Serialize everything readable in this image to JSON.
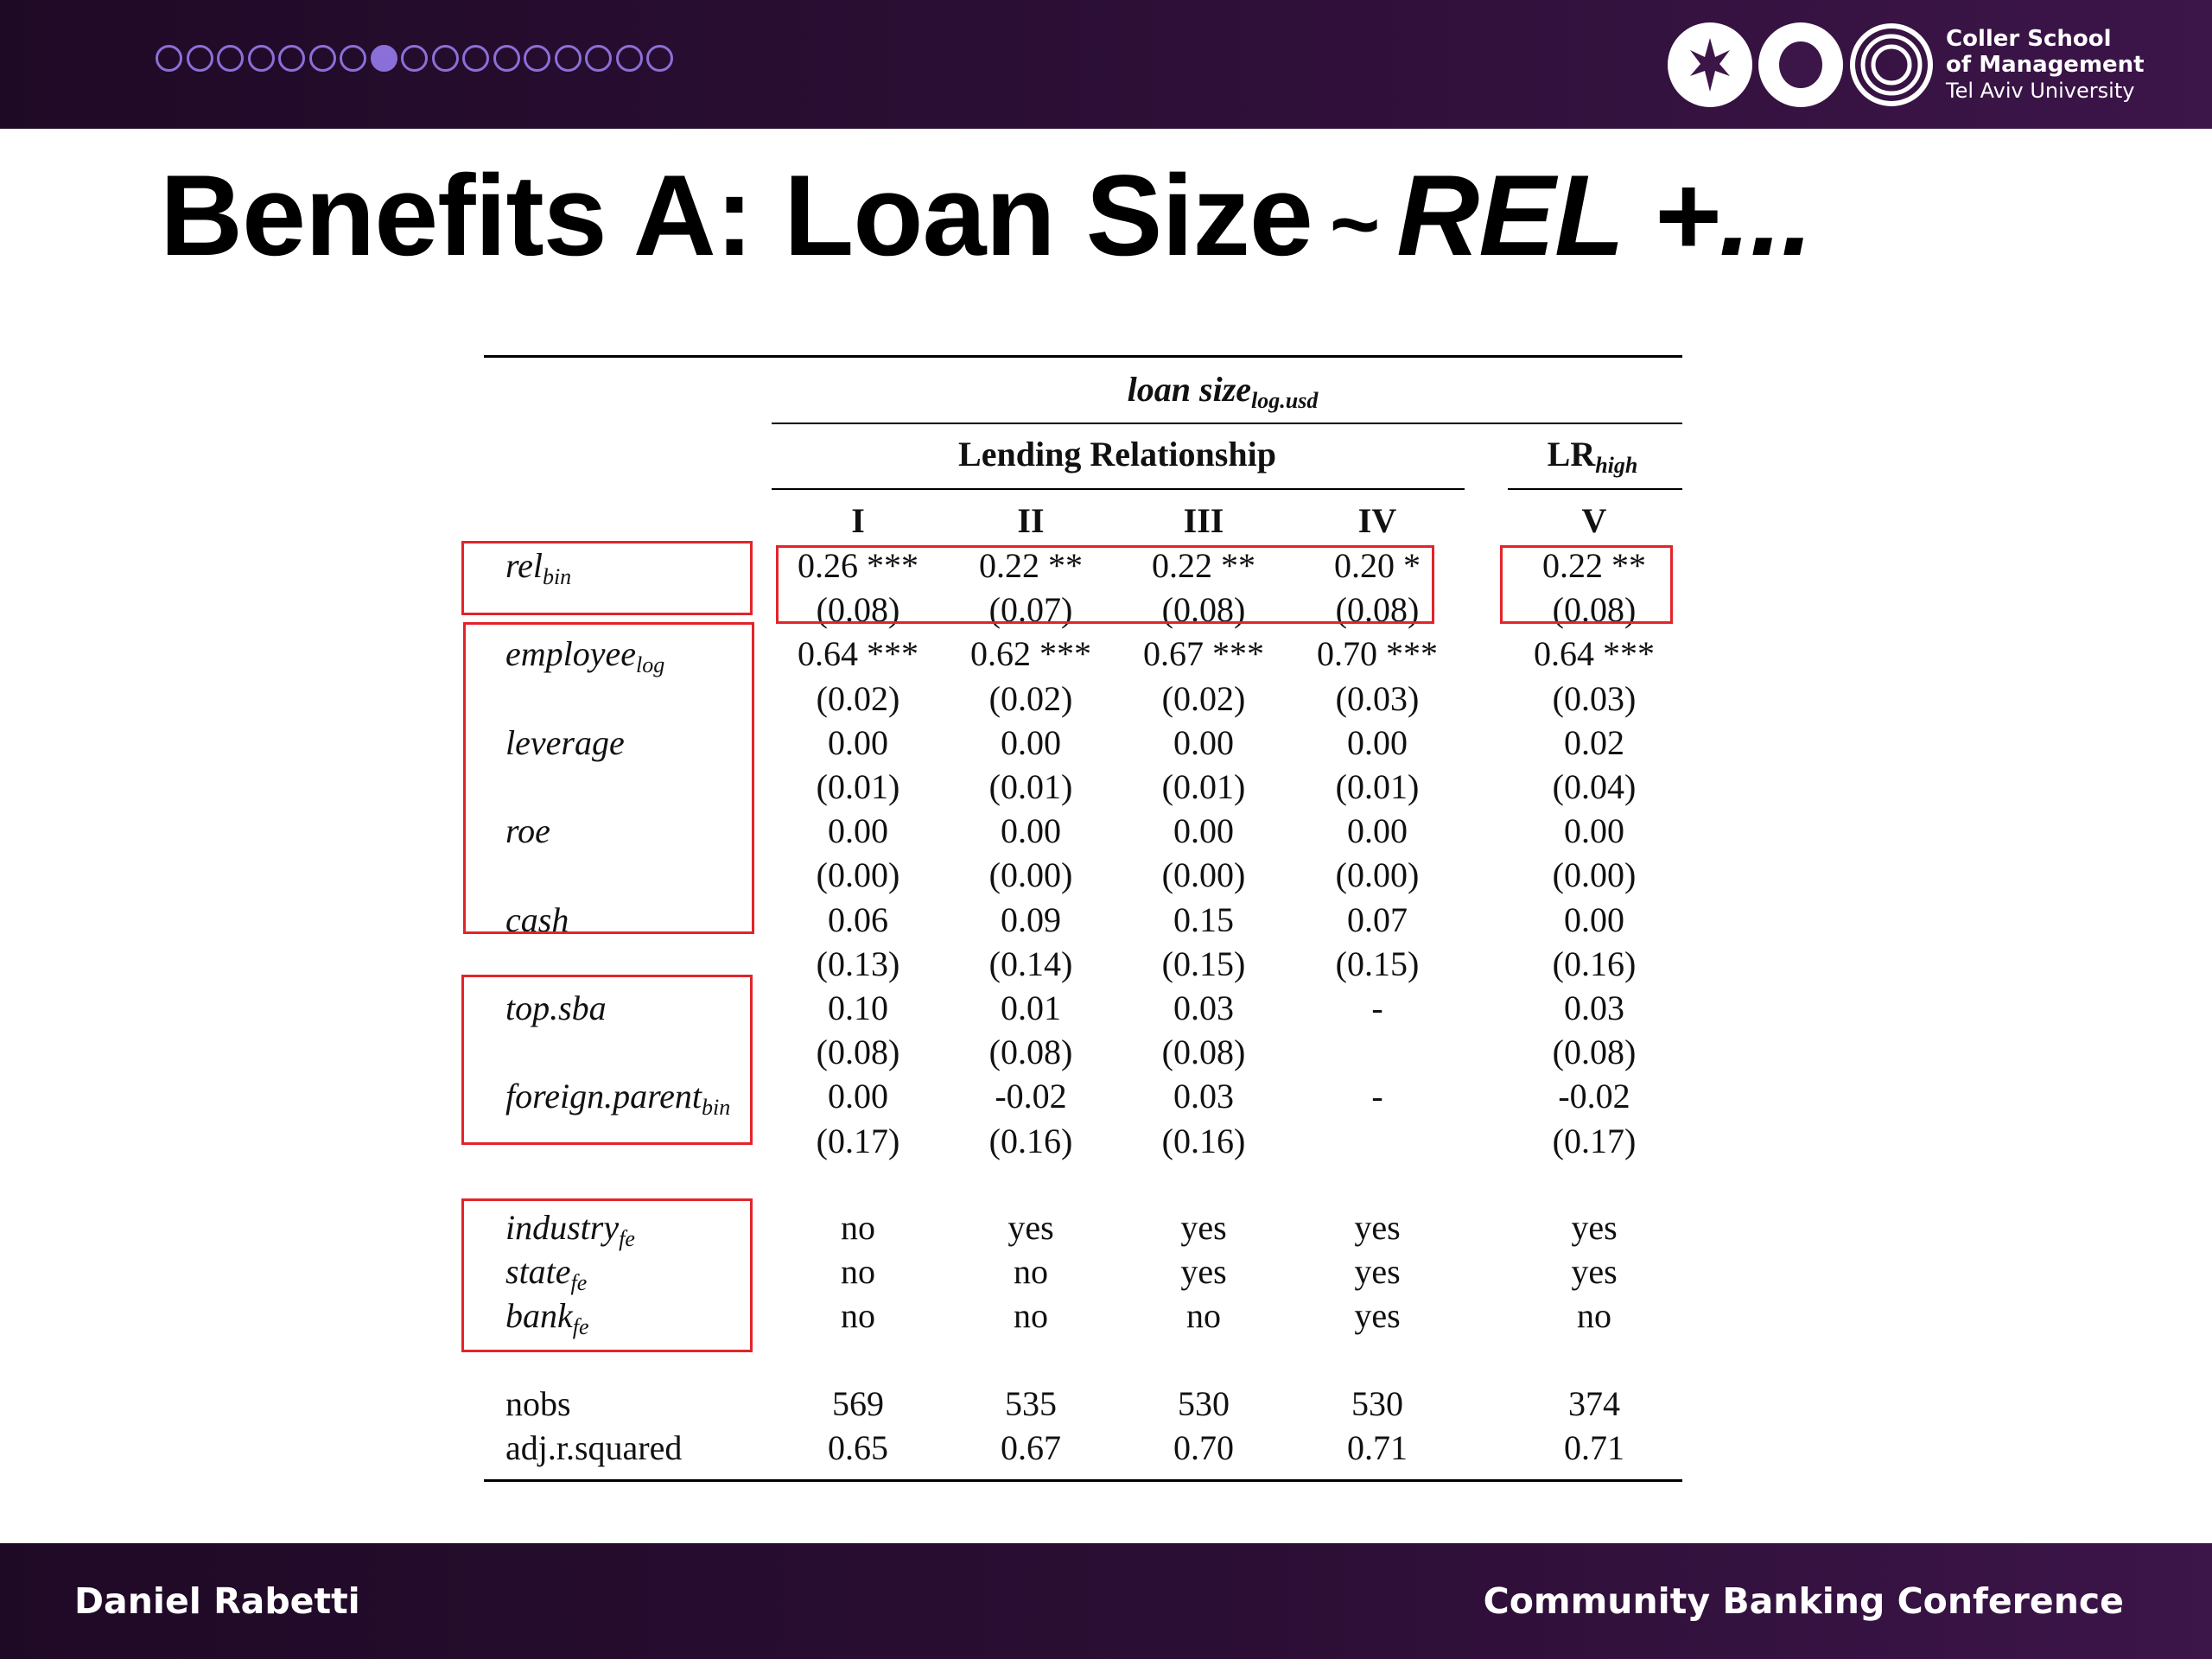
{
  "header": {
    "progress": {
      "total": 17,
      "current": 8
    },
    "logo_lines": [
      "Coller School",
      "of Management",
      "Tel Aviv University"
    ]
  },
  "title": {
    "main": "Benefits A: Loan Size",
    "sep": "~",
    "emph": "REL +..."
  },
  "table": {
    "dep_var": {
      "base": "loan size",
      "sub": "log.usd"
    },
    "group_left": "Lending Relationship",
    "group_right": {
      "base": "LR",
      "sub": "high"
    },
    "columns": [
      "I",
      "II",
      "III",
      "IV",
      "V"
    ],
    "rows": [
      {
        "base": "rel",
        "sub": "bin",
        "coef": [
          "0.26 ***",
          "0.22 **",
          "0.22 **",
          "0.20 *",
          "0.22 **"
        ],
        "se": [
          "(0.08)",
          "(0.07)",
          "(0.08)",
          "(0.08)",
          "(0.08)"
        ]
      },
      {
        "base": "employee",
        "sub": "log",
        "coef": [
          "0.64 ***",
          "0.62 ***",
          "0.67 ***",
          "0.70 ***",
          "0.64 ***"
        ],
        "se": [
          "(0.02)",
          "(0.02)",
          "(0.02)",
          "(0.03)",
          "(0.03)"
        ]
      },
      {
        "base": "leverage",
        "sub": "",
        "coef": [
          "0.00",
          "0.00",
          "0.00",
          "0.00",
          "0.02"
        ],
        "se": [
          "(0.01)",
          "(0.01)",
          "(0.01)",
          "(0.01)",
          "(0.04)"
        ]
      },
      {
        "base": "roe",
        "sub": "",
        "coef": [
          "0.00",
          "0.00",
          "0.00",
          "0.00",
          "0.00"
        ],
        "se": [
          "(0.00)",
          "(0.00)",
          "(0.00)",
          "(0.00)",
          "(0.00)"
        ]
      },
      {
        "base": "cash",
        "sub": "",
        "coef": [
          "0.06",
          "0.09",
          "0.15",
          "0.07",
          "0.00"
        ],
        "se": [
          "(0.13)",
          "(0.14)",
          "(0.15)",
          "(0.15)",
          "(0.16)"
        ]
      },
      {
        "base": "top.sba",
        "sub": "",
        "coef": [
          "0.10",
          "0.01",
          "0.03",
          "-",
          "0.03"
        ],
        "se": [
          "(0.08)",
          "(0.08)",
          "(0.08)",
          "",
          "(0.08)"
        ]
      },
      {
        "base": "foreign.parent",
        "sub": "bin",
        "coef": [
          "0.00",
          "-0.02",
          "0.03",
          "-",
          "-0.02"
        ],
        "se": [
          "(0.17)",
          "(0.16)",
          "(0.16)",
          "",
          "(0.17)"
        ]
      }
    ],
    "fe_rows": [
      {
        "base": "industry",
        "sub": "fe",
        "vals": [
          "no",
          "yes",
          "yes",
          "yes",
          "yes"
        ]
      },
      {
        "base": "state",
        "sub": "fe",
        "vals": [
          "no",
          "no",
          "yes",
          "yes",
          "yes"
        ]
      },
      {
        "base": "bank",
        "sub": "fe",
        "vals": [
          "no",
          "no",
          "no",
          "yes",
          "no"
        ]
      }
    ],
    "stat_rows": [
      {
        "label": "nobs",
        "vals": [
          "569",
          "535",
          "530",
          "530",
          "374"
        ]
      },
      {
        "label": "adj.r.squared",
        "vals": [
          "0.65",
          "0.67",
          "0.70",
          "0.71",
          "0.71"
        ]
      }
    ]
  },
  "footer": {
    "left": "Daniel Rabetti",
    "right": "Community Banking Conference"
  },
  "colors": {
    "header_bg": "#2b0e34",
    "progress": "#8b6fd8",
    "highlight": "#e3242b"
  }
}
